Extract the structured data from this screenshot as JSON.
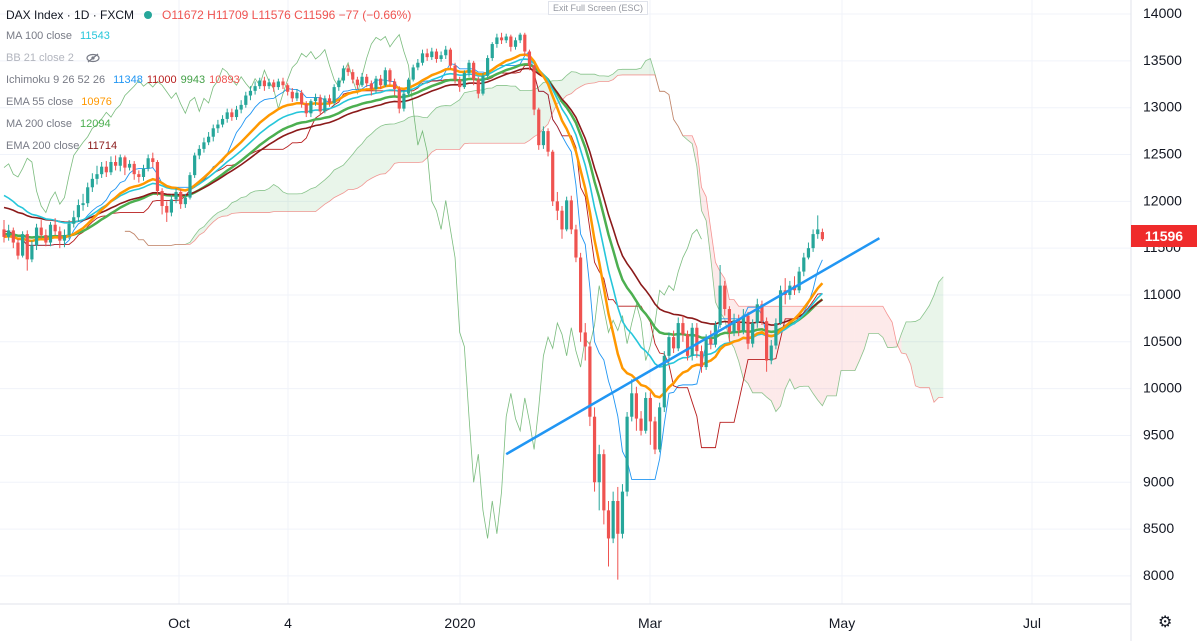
{
  "header": {
    "title": "DAX Index · 1D · FXCM",
    "ohlc": "O11672 H11709 L11576 C11596 −77 (−0.66%)",
    "exit_fullscreen": "Exit Full Screen (ESC)"
  },
  "indicators": [
    {
      "name": "MA 100 close",
      "value": "11543",
      "color": "#26c6da"
    },
    {
      "name": "BB 21 close 2",
      "value": "",
      "color": "#787b86",
      "hidden": true
    },
    {
      "name": "Ichimoku 9 26 52 26",
      "values": [
        "11348",
        "11000",
        "9943",
        "10893"
      ],
      "colors": [
        "#2196f3",
        "#b71c1c",
        "#43a047",
        "#ef5350"
      ]
    },
    {
      "name": "EMA 55 close",
      "value": "10976",
      "color": "#ff9800"
    },
    {
      "name": "MA 200 close",
      "value": "12094",
      "color": "#4caf50"
    },
    {
      "name": "EMA 200 close",
      "value": "11714",
      "color": "#8b1a1a"
    }
  ],
  "price_label": "11596",
  "colors": {
    "up": "#26a69a",
    "down": "#ef5350",
    "trendline": "#2196f3",
    "bg": "#ffffff",
    "grid": "#f0f3fa"
  },
  "chart_data": {
    "type": "candlestick",
    "title": "DAX Index · 1D · FXCM",
    "y_ticks": [
      8000,
      8500,
      9000,
      9500,
      10000,
      10500,
      11000,
      11500,
      12000,
      12500,
      13000,
      13500,
      14000
    ],
    "ylim": [
      7700,
      14150
    ],
    "x_ticks": [
      "Oct",
      "4",
      "2020",
      "Mar",
      "May",
      "Jul"
    ],
    "last_close": 11596,
    "candles": [
      [
        11700,
        11620,
        11800,
        11560
      ],
      [
        11620,
        11690,
        11750,
        11580
      ],
      [
        11690,
        11560,
        11720,
        11500
      ],
      [
        11560,
        11420,
        11600,
        11380
      ],
      [
        11420,
        11650,
        11680,
        11400
      ],
      [
        11650,
        11380,
        11690,
        11260
      ],
      [
        11380,
        11530,
        11580,
        11350
      ],
      [
        11530,
        11720,
        11760,
        11480
      ],
      [
        11720,
        11640,
        11800,
        11600
      ],
      [
        11640,
        11560,
        11700,
        11520
      ],
      [
        11560,
        11750,
        11780,
        11520
      ],
      [
        11750,
        11680,
        11820,
        11640
      ],
      [
        11680,
        11580,
        11730,
        11500
      ],
      [
        11580,
        11640,
        11700,
        11510
      ],
      [
        11640,
        11760,
        11800,
        11600
      ],
      [
        11760,
        11830,
        11900,
        11720
      ],
      [
        11830,
        11960,
        12020,
        11780
      ],
      [
        11960,
        11980,
        12080,
        11900
      ],
      [
        11980,
        12150,
        12200,
        11940
      ],
      [
        12150,
        12240,
        12300,
        12100
      ],
      [
        12240,
        12290,
        12380,
        12180
      ],
      [
        12290,
        12370,
        12420,
        12250
      ],
      [
        12370,
        12310,
        12430,
        12260
      ],
      [
        12310,
        12420,
        12480,
        12280
      ],
      [
        12420,
        12380,
        12490,
        12330
      ],
      [
        12380,
        12470,
        12500,
        12320
      ],
      [
        12470,
        12360,
        12490,
        12280
      ],
      [
        12360,
        12400,
        12440,
        12330
      ],
      [
        12400,
        12290,
        12430,
        12230
      ],
      [
        12290,
        12260,
        12330,
        12200
      ],
      [
        12260,
        12350,
        12390,
        12220
      ],
      [
        12350,
        12460,
        12500,
        12320
      ],
      [
        12460,
        12420,
        12520,
        12360
      ],
      [
        12420,
        12110,
        12440,
        12060
      ],
      [
        12110,
        11950,
        12140,
        11860
      ],
      [
        11950,
        11880,
        12000,
        11780
      ],
      [
        11880,
        12020,
        12070,
        11840
      ],
      [
        12020,
        12100,
        12140,
        11980
      ],
      [
        12100,
        11970,
        12130,
        11920
      ],
      [
        11970,
        12040,
        12080,
        11930
      ],
      [
        12040,
        12280,
        12310,
        12020
      ],
      [
        12280,
        12490,
        12520,
        12250
      ],
      [
        12490,
        12560,
        12600,
        12450
      ],
      [
        12560,
        12630,
        12680,
        12520
      ],
      [
        12630,
        12690,
        12740,
        12600
      ],
      [
        12690,
        12780,
        12820,
        12640
      ],
      [
        12780,
        12820,
        12870,
        12730
      ],
      [
        12820,
        12880,
        12920,
        12790
      ],
      [
        12880,
        12950,
        12990,
        12840
      ],
      [
        12950,
        12900,
        12990,
        12860
      ],
      [
        12900,
        12980,
        13020,
        12870
      ],
      [
        12980,
        13030,
        13080,
        12940
      ],
      [
        13030,
        13130,
        13170,
        13000
      ],
      [
        13130,
        13180,
        13230,
        13080
      ],
      [
        13180,
        13230,
        13280,
        13140
      ],
      [
        13230,
        13290,
        13320,
        13200
      ],
      [
        13290,
        13230,
        13330,
        13180
      ],
      [
        13230,
        13270,
        13310,
        13200
      ],
      [
        13270,
        13220,
        13300,
        13170
      ],
      [
        13220,
        13280,
        13310,
        13190
      ],
      [
        13280,
        13240,
        13320,
        13200
      ],
      [
        13240,
        13170,
        13260,
        13130
      ],
      [
        13170,
        13100,
        13210,
        13060
      ],
      [
        13100,
        13160,
        13200,
        13070
      ],
      [
        13160,
        13040,
        13190,
        13000
      ],
      [
        13040,
        12940,
        13070,
        12900
      ],
      [
        12940,
        13070,
        13090,
        12900
      ],
      [
        13070,
        13110,
        13150,
        13020
      ],
      [
        13110,
        12960,
        13140,
        12930
      ],
      [
        12960,
        13100,
        13130,
        12940
      ],
      [
        13100,
        13050,
        13140,
        13010
      ],
      [
        13050,
        13220,
        13250,
        13020
      ],
      [
        13220,
        13290,
        13320,
        13180
      ],
      [
        13290,
        13420,
        13450,
        13260
      ],
      [
        13420,
        13380,
        13460,
        13340
      ],
      [
        13380,
        13300,
        13410,
        13260
      ],
      [
        13300,
        13240,
        13330,
        13200
      ],
      [
        13240,
        13330,
        13370,
        13220
      ],
      [
        13330,
        13260,
        13360,
        13220
      ],
      [
        13260,
        13200,
        13290,
        13130
      ],
      [
        13200,
        13310,
        13340,
        13160
      ],
      [
        13310,
        13240,
        13350,
        13200
      ],
      [
        13240,
        13400,
        13430,
        13220
      ],
      [
        13400,
        13280,
        13420,
        13240
      ],
      [
        13280,
        13200,
        13310,
        13130
      ],
      [
        13200,
        12990,
        13230,
        12940
      ],
      [
        12990,
        13150,
        13180,
        12960
      ],
      [
        13150,
        13300,
        13320,
        13120
      ],
      [
        13300,
        13430,
        13460,
        13280
      ],
      [
        13430,
        13480,
        13520,
        13400
      ],
      [
        13480,
        13580,
        13620,
        13450
      ],
      [
        13580,
        13540,
        13630,
        13500
      ],
      [
        13540,
        13600,
        13640,
        13510
      ],
      [
        13600,
        13520,
        13630,
        13480
      ],
      [
        13520,
        13560,
        13600,
        13490
      ],
      [
        13560,
        13620,
        13660,
        13520
      ],
      [
        13620,
        13450,
        13640,
        13410
      ],
      [
        13450,
        13300,
        13480,
        13260
      ],
      [
        13300,
        13220,
        13330,
        13170
      ],
      [
        13220,
        13370,
        13400,
        13200
      ],
      [
        13370,
        13480,
        13510,
        13330
      ],
      [
        13480,
        13300,
        13500,
        13240
      ],
      [
        13300,
        13150,
        13330,
        13100
      ],
      [
        13150,
        13340,
        13370,
        13130
      ],
      [
        13340,
        13530,
        13560,
        13310
      ],
      [
        13530,
        13680,
        13700,
        13500
      ],
      [
        13680,
        13750,
        13790,
        13640
      ],
      [
        13750,
        13720,
        13800,
        13680
      ],
      [
        13720,
        13760,
        13790,
        13690
      ],
      [
        13760,
        13650,
        13780,
        13600
      ],
      [
        13650,
        13720,
        13750,
        13620
      ],
      [
        13720,
        13780,
        13800,
        13690
      ],
      [
        13780,
        13600,
        13800,
        13560
      ],
      [
        13600,
        13450,
        13620,
        13400
      ],
      [
        13450,
        12980,
        13460,
        12920
      ],
      [
        12980,
        12600,
        13000,
        12550
      ],
      [
        12600,
        12750,
        12800,
        12560
      ],
      [
        12750,
        12530,
        12780,
        12480
      ],
      [
        12530,
        12000,
        12550,
        11950
      ],
      [
        12000,
        11900,
        12100,
        11800
      ],
      [
        11900,
        11700,
        11950,
        11600
      ],
      [
        11700,
        12010,
        12050,
        11680
      ],
      [
        12010,
        11700,
        12060,
        11650
      ],
      [
        11700,
        11400,
        11750,
        11350
      ],
      [
        11400,
        10600,
        11450,
        10500
      ],
      [
        10600,
        10450,
        10700,
        10300
      ],
      [
        10450,
        9700,
        10500,
        9600
      ],
      [
        9700,
        9000,
        9800,
        8900
      ],
      [
        9000,
        9300,
        9400,
        8700
      ],
      [
        9300,
        8700,
        9350,
        8550
      ],
      [
        8700,
        8400,
        8800,
        8100
      ],
      [
        8400,
        8800,
        8900,
        8350
      ],
      [
        8800,
        8450,
        8950,
        7960
      ],
      [
        8450,
        8900,
        8980,
        8400
      ],
      [
        8900,
        9700,
        9750,
        8850
      ],
      [
        9700,
        9950,
        10100,
        9650
      ],
      [
        9950,
        9680,
        10020,
        9550
      ],
      [
        9680,
        9550,
        9760,
        9500
      ],
      [
        9550,
        9900,
        9960,
        9520
      ],
      [
        9900,
        9650,
        9960,
        9400
      ],
      [
        9650,
        9350,
        9700,
        9300
      ],
      [
        9350,
        9800,
        9850,
        9320
      ],
      [
        9800,
        10350,
        10400,
        9750
      ],
      [
        10350,
        10550,
        10600,
        10280
      ],
      [
        10550,
        10430,
        10620,
        10380
      ],
      [
        10430,
        10700,
        10760,
        10400
      ],
      [
        10700,
        10580,
        10780,
        10500
      ],
      [
        10580,
        10350,
        10620,
        10300
      ],
      [
        10350,
        10650,
        10700,
        10300
      ],
      [
        10650,
        10400,
        10700,
        10330
      ],
      [
        10400,
        10230,
        10460,
        10170
      ],
      [
        10230,
        10530,
        10580,
        10200
      ],
      [
        10530,
        10470,
        10620,
        10420
      ],
      [
        10470,
        10680,
        10720,
        10440
      ],
      [
        10680,
        11100,
        11320,
        10650
      ],
      [
        11100,
        10850,
        11150,
        10780
      ],
      [
        10850,
        10600,
        10880,
        10500
      ],
      [
        10600,
        10730,
        10800,
        10560
      ],
      [
        10730,
        10620,
        10790,
        10560
      ],
      [
        10620,
        10780,
        10850,
        10580
      ],
      [
        10780,
        10480,
        10820,
        10420
      ],
      [
        10480,
        10700,
        10740,
        10440
      ],
      [
        10700,
        10900,
        10960,
        10650
      ],
      [
        10900,
        10720,
        10940,
        10680
      ],
      [
        10720,
        10300,
        10760,
        10180
      ],
      [
        10300,
        10460,
        10520,
        10260
      ],
      [
        10460,
        10700,
        10750,
        10420
      ],
      [
        10700,
        11050,
        11100,
        10680
      ],
      [
        11050,
        11000,
        11180,
        10900
      ],
      [
        11000,
        11100,
        11150,
        10950
      ],
      [
        11100,
        11050,
        11200,
        11000
      ],
      [
        11050,
        11250,
        11300,
        11020
      ],
      [
        11250,
        11400,
        11450,
        11200
      ],
      [
        11400,
        11500,
        11560,
        11380
      ],
      [
        11500,
        11650,
        11700,
        11460
      ],
      [
        11650,
        11700,
        11850,
        11600
      ],
      [
        11672,
        11596,
        11709,
        11576
      ]
    ],
    "trendline": [
      [
        108,
        9300
      ],
      [
        156,
        11500
      ]
    ]
  }
}
